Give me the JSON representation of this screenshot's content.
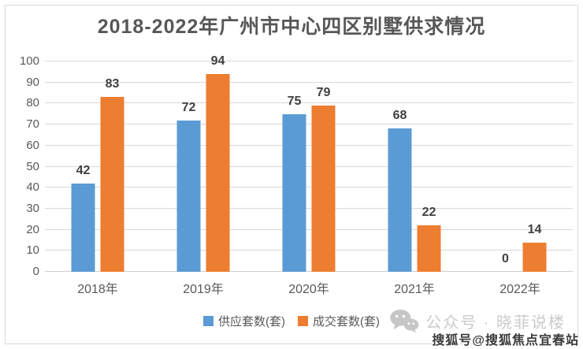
{
  "chart_data": {
    "type": "bar",
    "title": "2018-2022年广州市中心四区别墅供求情况",
    "categories": [
      "2018年",
      "2019年",
      "2020年",
      "2021年",
      "2022年"
    ],
    "series": [
      {
        "name": "供应套数(套)",
        "color": "#5B9BD5",
        "values": [
          42,
          72,
          75,
          68,
          0
        ]
      },
      {
        "name": "成交套数(套)",
        "color": "#ED7D31",
        "values": [
          83,
          94,
          79,
          22,
          14
        ]
      }
    ],
    "xlabel": "",
    "ylabel": "",
    "ylim": [
      0,
      100
    ],
    "ytick_step": 10,
    "grid": true,
    "legend_position": "bottom",
    "data_labels": true
  },
  "watermarks": {
    "wechat_account": "公众号 · 晓菲说楼",
    "sohu_account": "搜狐号@搜狐焦点宜春站"
  },
  "colors": {
    "series_blue": "#5B9BD5",
    "series_orange": "#ED7D31",
    "title_text": "#575757",
    "axis_text": "#595959",
    "data_label_text": "#404040",
    "gridline": "#D9D9D9",
    "watermark_light": "#CBCBCB",
    "watermark_dark": "#3B3B3B"
  }
}
